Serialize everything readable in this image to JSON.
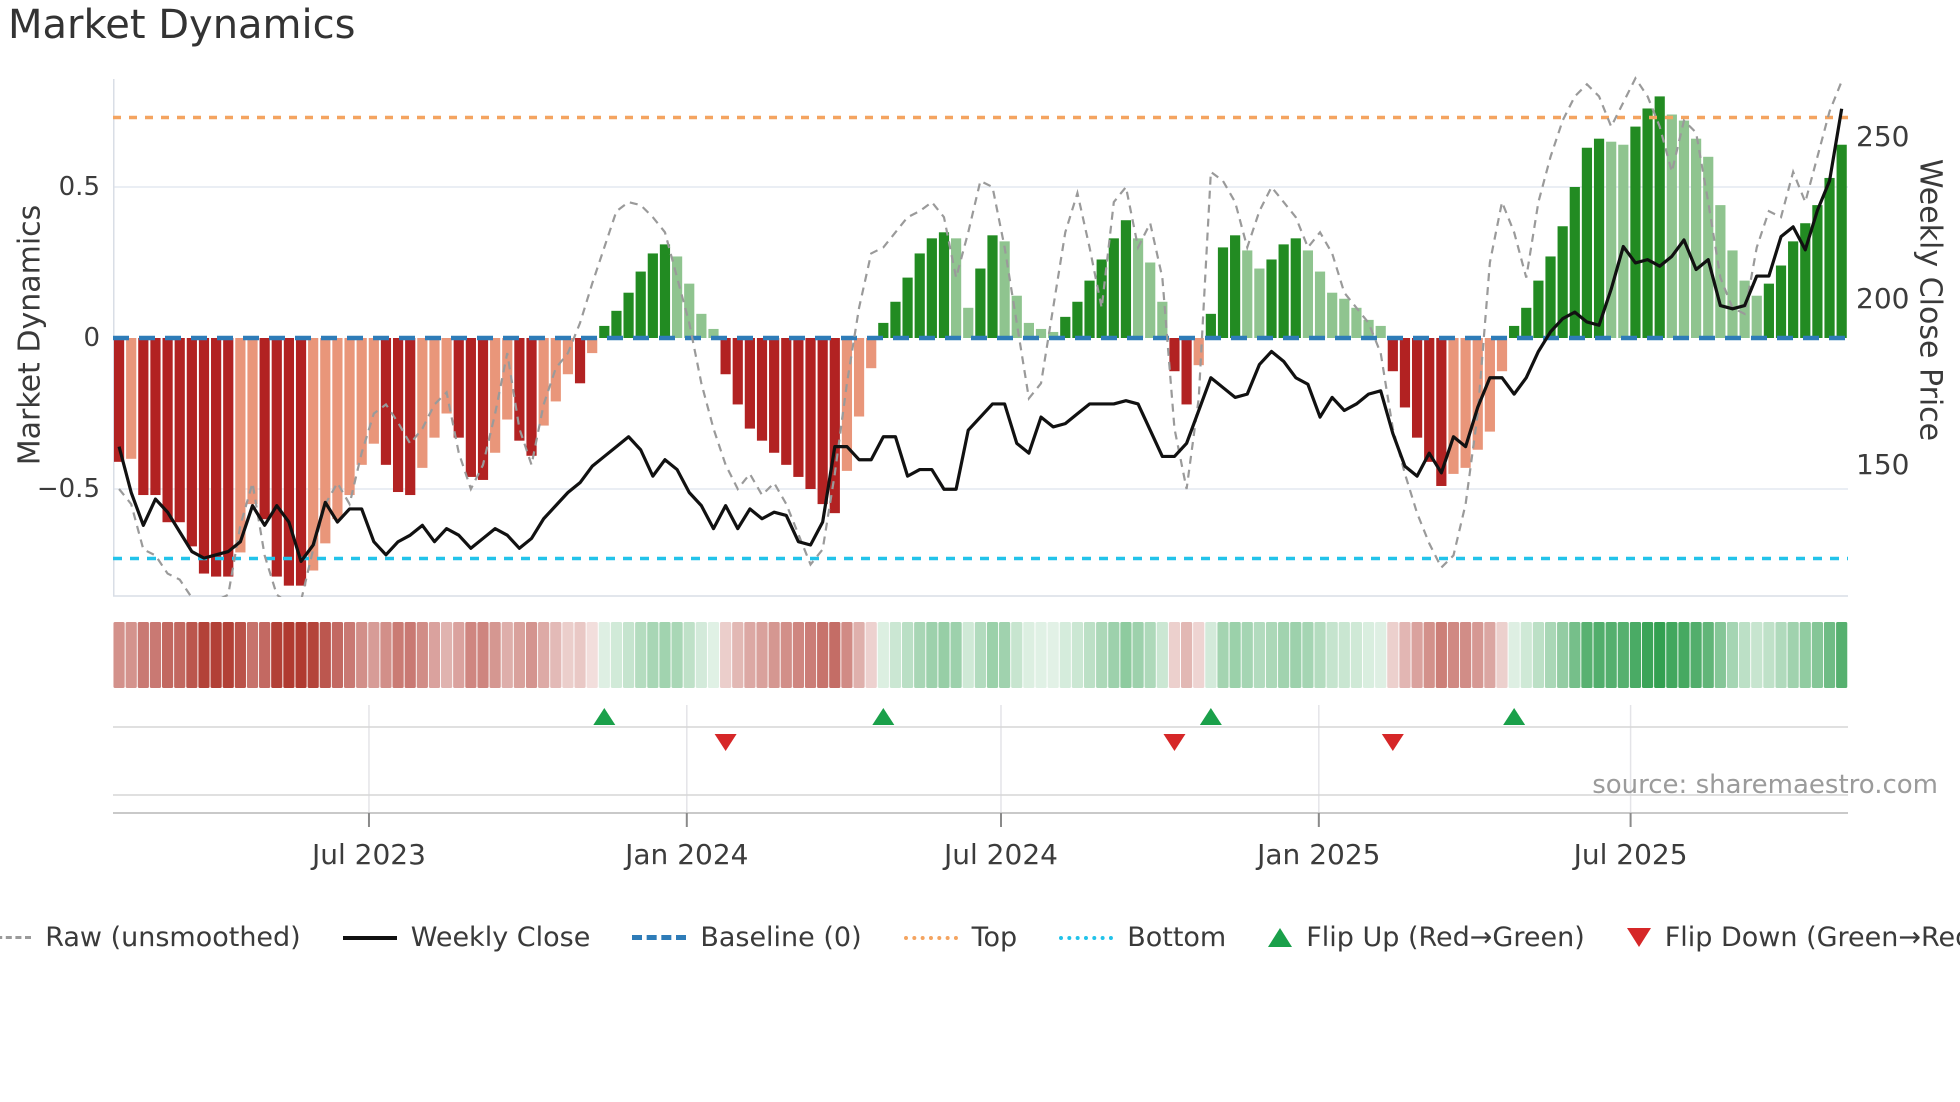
{
  "title": "Market Dynamics",
  "source_text": "source: sharemaestro.com",
  "axes": {
    "left_label": "Market Dynamics",
    "right_label": "Weekly Close Price",
    "left_ticks": [
      "0.5",
      "0",
      "−0.5"
    ],
    "right_ticks": [
      "250",
      "200",
      "150"
    ],
    "x_tick_labels": [
      "Jul 2023",
      "Jan 2024",
      "Jul 2024",
      "Jan 2025",
      "Jul 2025"
    ]
  },
  "legend": [
    {
      "label": "Raw (unsmoothed)",
      "swatch": "dash-gray"
    },
    {
      "label": "Weekly Close",
      "swatch": "solid-black"
    },
    {
      "label": "Baseline (0)",
      "swatch": "dash-blue"
    },
    {
      "label": "Top",
      "swatch": "dot-orange"
    },
    {
      "label": "Bottom",
      "swatch": "dot-cyan"
    },
    {
      "label": "Flip Up (Red→Green)",
      "swatch": "tri-up"
    },
    {
      "label": "Flip Down (Green→Red)",
      "swatch": "tri-down"
    }
  ],
  "colors": {
    "bar_dark_red": "#b22222",
    "bar_salmon": "#e9967a",
    "bar_dark_green": "#228b22",
    "bar_light_green": "#8fc48f",
    "baseline_blue": "#2e7cb8",
    "top_orange": "#f4a460",
    "bottom_cyan": "#22c3ea",
    "raw_gray": "#9a9a9a",
    "price_black": "#111111",
    "flip_up_green": "#1aa04a",
    "flip_down_red": "#d62728",
    "heat_red_base": "#b03a30",
    "heat_green_base": "#2f9e4e",
    "grid": "#eaeef4",
    "spine": "#d9dee6"
  },
  "chart_data": {
    "type": "combo",
    "description": "Weekly market-dynamics oscillator (bars, left axis) with raw unsmoothed line, weekly close price (right axis), baseline/top/bottom guide lines, sign heatmap strip and flip markers.",
    "x_unit": "week index (weekly data, ~Feb 2023 to Nov 2025)",
    "n_points": 143,
    "left_ylim": [
      -0.9,
      0.88
    ],
    "right_ylim": [
      118,
      262
    ],
    "baseline": 0,
    "top_line": 0.73,
    "bottom_line": -0.73,
    "x_ticks": [
      {
        "label": "Jul 2023",
        "week": 20.6
      },
      {
        "label": "Jan 2024",
        "week": 46.8
      },
      {
        "label": "Jul 2024",
        "week": 72.7
      },
      {
        "label": "Jan 2025",
        "week": 98.9
      },
      {
        "label": "Jul 2025",
        "week": 124.6
      }
    ],
    "series": [
      {
        "name": "Market Dynamics (smoothed bars)",
        "type": "bar",
        "axis": "left",
        "color_rule": "negative: dark red while deepening, salmon while recovering; positive: dark green while rising, light green while falling",
        "values": [
          -0.41,
          -0.4,
          -0.52,
          -0.52,
          -0.61,
          -0.61,
          -0.69,
          -0.78,
          -0.79,
          -0.79,
          -0.71,
          -0.55,
          -0.6,
          -0.79,
          -0.82,
          -0.82,
          -0.77,
          -0.68,
          -0.6,
          -0.52,
          -0.42,
          -0.35,
          -0.42,
          -0.51,
          -0.52,
          -0.43,
          -0.33,
          -0.25,
          -0.33,
          -0.46,
          -0.47,
          -0.38,
          -0.27,
          -0.34,
          -0.39,
          -0.29,
          -0.21,
          -0.12,
          -0.15,
          -0.05,
          0.04,
          0.09,
          0.15,
          0.22,
          0.28,
          0.31,
          0.27,
          0.18,
          0.08,
          0.03,
          -0.12,
          -0.22,
          -0.3,
          -0.34,
          -0.38,
          -0.42,
          -0.46,
          -0.5,
          -0.55,
          -0.58,
          -0.44,
          -0.26,
          -0.1,
          0.05,
          0.12,
          0.2,
          0.28,
          0.33,
          0.35,
          0.33,
          0.1,
          0.23,
          0.34,
          0.32,
          0.14,
          0.05,
          0.03,
          0.02,
          0.07,
          0.12,
          0.19,
          0.26,
          0.33,
          0.39,
          0.33,
          0.25,
          0.12,
          -0.11,
          -0.22,
          -0.09,
          0.08,
          0.3,
          0.34,
          0.29,
          0.23,
          0.26,
          0.31,
          0.33,
          0.29,
          0.22,
          0.15,
          0.13,
          0.1,
          0.06,
          0.04,
          -0.11,
          -0.23,
          -0.33,
          -0.41,
          -0.49,
          -0.45,
          -0.43,
          -0.37,
          -0.31,
          -0.11,
          0.04,
          0.1,
          0.19,
          0.27,
          0.37,
          0.5,
          0.63,
          0.66,
          0.65,
          0.64,
          0.7,
          0.76,
          0.8,
          0.74,
          0.72,
          0.66,
          0.6,
          0.44,
          0.29,
          0.19,
          0.14,
          0.18,
          0.24,
          0.32,
          0.38,
          0.44,
          0.53,
          0.64
        ]
      },
      {
        "name": "Raw (unsmoothed)",
        "type": "line",
        "style": "dashed gray",
        "axis": "left",
        "values": [
          -0.5,
          -0.55,
          -0.7,
          -0.72,
          -0.78,
          -0.8,
          -0.86,
          -0.88,
          -0.87,
          -0.85,
          -0.62,
          -0.48,
          -0.72,
          -0.85,
          -0.88,
          -0.87,
          -0.7,
          -0.55,
          -0.48,
          -0.55,
          -0.38,
          -0.25,
          -0.22,
          -0.28,
          -0.35,
          -0.3,
          -0.22,
          -0.18,
          -0.38,
          -0.5,
          -0.42,
          -0.25,
          -0.05,
          -0.3,
          -0.42,
          -0.22,
          -0.1,
          -0.05,
          0.05,
          0.18,
          0.3,
          0.42,
          0.45,
          0.44,
          0.4,
          0.35,
          0.2,
          0.05,
          -0.15,
          -0.3,
          -0.42,
          -0.5,
          -0.45,
          -0.52,
          -0.48,
          -0.55,
          -0.65,
          -0.75,
          -0.7,
          -0.45,
          -0.15,
          0.1,
          0.28,
          0.3,
          0.35,
          0.4,
          0.42,
          0.45,
          0.4,
          0.2,
          0.35,
          0.52,
          0.5,
          0.3,
          0.05,
          -0.2,
          -0.15,
          0.1,
          0.35,
          0.48,
          0.3,
          0.1,
          0.45,
          0.5,
          0.3,
          0.38,
          0.2,
          -0.3,
          -0.5,
          -0.2,
          0.55,
          0.52,
          0.45,
          0.3,
          0.42,
          0.5,
          0.45,
          0.4,
          0.3,
          0.35,
          0.28,
          0.15,
          0.1,
          0.05,
          -0.05,
          -0.3,
          -0.45,
          -0.58,
          -0.68,
          -0.76,
          -0.72,
          -0.55,
          -0.25,
          0.25,
          0.45,
          0.35,
          0.2,
          0.45,
          0.6,
          0.72,
          0.8,
          0.84,
          0.8,
          0.7,
          0.78,
          0.86,
          0.8,
          0.7,
          0.55,
          0.72,
          0.68,
          0.45,
          0.2,
          0.1,
          0.08,
          0.3,
          0.42,
          0.4,
          0.55,
          0.45,
          0.6,
          0.75,
          0.85
        ]
      },
      {
        "name": "Weekly Close",
        "type": "line",
        "style": "solid black",
        "axis": "right",
        "values": [
          155,
          141,
          131,
          139,
          135,
          129,
          123,
          121,
          122,
          123,
          126,
          137,
          131,
          137,
          132,
          120,
          125,
          138,
          132,
          136,
          136,
          126,
          122,
          126,
          128,
          131,
          126,
          130,
          128,
          124,
          127,
          130,
          128,
          124,
          127,
          133,
          137,
          141,
          144,
          149,
          152,
          155,
          158,
          154,
          146,
          151,
          148,
          141,
          137,
          130,
          137,
          130,
          136,
          133,
          135,
          134,
          126,
          125,
          132,
          155,
          155,
          151,
          151,
          158,
          158,
          146,
          148,
          148,
          142,
          142,
          160,
          164,
          168,
          168,
          156,
          153,
          164,
          161,
          162,
          165,
          168,
          168,
          168,
          169,
          168,
          160,
          152,
          152,
          156,
          166,
          176,
          173,
          170,
          171,
          180,
          184,
          181,
          176,
          174,
          164,
          170,
          166,
          168,
          171,
          172,
          159,
          149,
          146,
          153,
          147,
          158,
          155,
          167,
          176,
          176,
          171,
          176,
          184,
          190,
          194,
          196,
          193,
          192,
          203,
          216,
          211,
          212,
          210,
          213,
          218,
          209,
          212,
          198,
          197,
          198,
          207,
          207,
          219,
          222,
          215,
          227,
          236,
          258
        ]
      }
    ],
    "flip_up_weeks": [
      40,
      63,
      90,
      115
    ],
    "flip_down_weeks": [
      50,
      87,
      105
    ],
    "heatmap_strip": "same 143 weekly values; cell hue = sign (red negative / green positive), cell intensity proportional to |value|"
  }
}
